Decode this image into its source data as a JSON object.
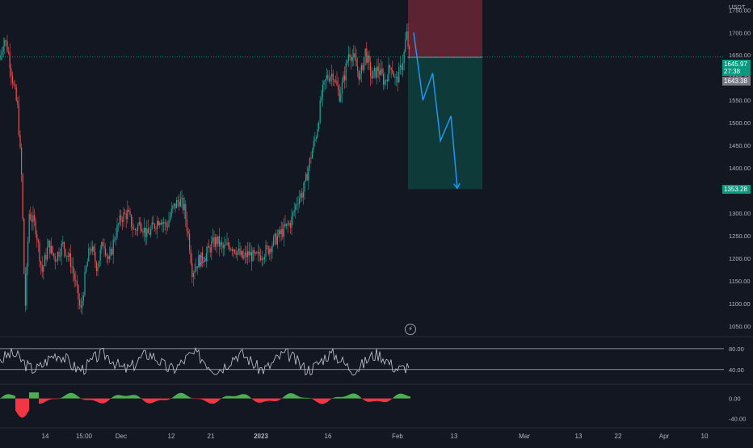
{
  "chart_data": [
    {
      "type": "candlestick",
      "quote_currency": "USDT",
      "y_ticks": [
        "1750.00",
        "1700.00",
        "1650.00",
        "1600.00",
        "1550.00",
        "1500.00",
        "1450.00",
        "1400.00",
        "1350.00",
        "1300.00",
        "1250.00",
        "1200.00",
        "1150.00",
        "1100.00",
        "1050.00"
      ],
      "ylim": [
        1030,
        1772
      ],
      "x_ticks": [
        "14",
        "15:00",
        "Dec",
        "12",
        "21",
        "2023",
        "16",
        "Feb",
        "13",
        "Mar",
        "13",
        "22",
        "Apr",
        "10"
      ],
      "price_path": [
        [
          0,
          1640
        ],
        [
          5,
          1690
        ],
        [
          10,
          1660
        ],
        [
          16,
          1590
        ],
        [
          22,
          1530
        ],
        [
          27,
          1370
        ],
        [
          31,
          1080
        ],
        [
          36,
          1300
        ],
        [
          44,
          1270
        ],
        [
          52,
          1170
        ],
        [
          60,
          1230
        ],
        [
          68,
          1200
        ],
        [
          78,
          1230
        ],
        [
          88,
          1190
        ],
        [
          95,
          1130
        ],
        [
          100,
          1080
        ],
        [
          106,
          1170
        ],
        [
          112,
          1230
        ],
        [
          120,
          1180
        ],
        [
          128,
          1240
        ],
        [
          135,
          1190
        ],
        [
          142,
          1250
        ],
        [
          150,
          1290
        ],
        [
          158,
          1300
        ],
        [
          166,
          1260
        ],
        [
          174,
          1280
        ],
        [
          182,
          1250
        ],
        [
          190,
          1270
        ],
        [
          198,
          1290
        ],
        [
          206,
          1270
        ],
        [
          214,
          1310
        ],
        [
          222,
          1330
        ],
        [
          228,
          1310
        ],
        [
          234,
          1240
        ],
        [
          238,
          1170
        ],
        [
          244,
          1190
        ],
        [
          250,
          1200
        ],
        [
          256,
          1210
        ],
        [
          262,
          1230
        ],
        [
          268,
          1240
        ],
        [
          276,
          1220
        ],
        [
          284,
          1230
        ],
        [
          292,
          1220
        ],
        [
          300,
          1200
        ],
        [
          308,
          1210
        ],
        [
          316,
          1200
        ],
        [
          324,
          1210
        ],
        [
          332,
          1220
        ],
        [
          340,
          1240
        ],
        [
          350,
          1260
        ],
        [
          360,
          1280
        ],
        [
          368,
          1330
        ],
        [
          376,
          1350
        ],
        [
          384,
          1420
        ],
        [
          392,
          1480
        ],
        [
          398,
          1560
        ],
        [
          404,
          1600
        ],
        [
          412,
          1610
        ],
        [
          420,
          1560
        ],
        [
          426,
          1600
        ],
        [
          432,
          1660
        ],
        [
          438,
          1640
        ],
        [
          446,
          1600
        ],
        [
          452,
          1660
        ],
        [
          460,
          1600
        ],
        [
          468,
          1620
        ],
        [
          476,
          1590
        ],
        [
          484,
          1630
        ],
        [
          490,
          1590
        ],
        [
          496,
          1620
        ],
        [
          500,
          1650
        ],
        [
          503,
          1700
        ],
        [
          507,
          1645
        ]
      ],
      "current_price": "1645.97",
      "countdown": "27:38",
      "entry_price": "1643.38",
      "target_price": "1353.28",
      "position": {
        "type": "short",
        "entry": 1645,
        "stop": 1772,
        "target": 1353
      },
      "projection": [
        [
          1700,
          0
        ],
        [
          1550,
          0.13
        ],
        [
          1610,
          0.27
        ],
        [
          1460,
          0.38
        ],
        [
          1515,
          0.53
        ],
        [
          1355,
          0.62
        ]
      ],
      "colors": {
        "up": "#26a69a",
        "down": "#ef5350",
        "stop_zone": "#5c2433",
        "target_zone": "#0e3a3a",
        "projection": "#2196f3",
        "background": "#131722",
        "text": "#b2b5be"
      }
    },
    {
      "type": "line",
      "indicator": "oscillator",
      "levels": [
        "80.00",
        "40.00"
      ],
      "ylim": [
        15,
        100
      ],
      "color": "#c5c8d0"
    },
    {
      "type": "histogram",
      "indicator": "momentum",
      "y_ticks": [
        "0.00",
        "-40.00"
      ],
      "ylim": [
        -55,
        25
      ],
      "colors": {
        "positive": "#4caf50",
        "negative": "#f23645"
      }
    }
  ]
}
